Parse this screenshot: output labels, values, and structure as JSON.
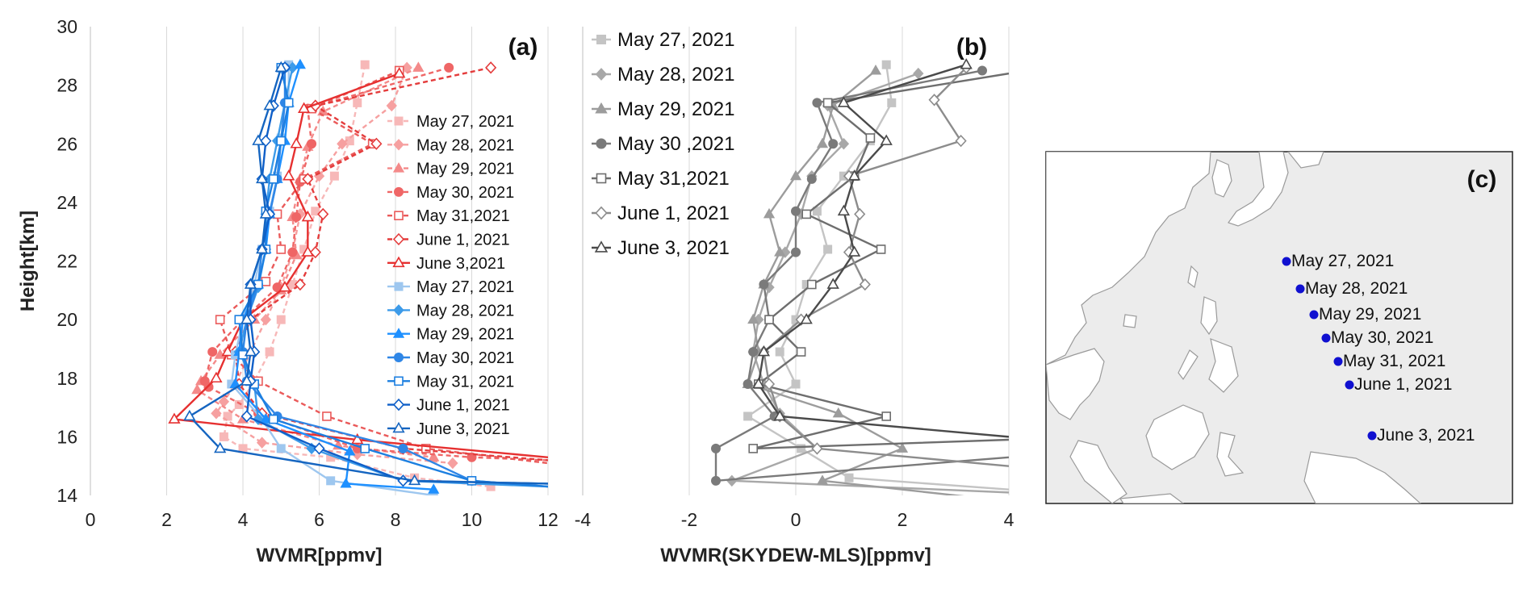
{
  "chart_data": [
    {
      "panel": "(a)",
      "type": "line",
      "xlabel": "WVMR[ppmv]",
      "ylabel": "Height[km]",
      "xlim": [
        0,
        12
      ],
      "ylim": [
        14,
        30
      ],
      "xticks": [
        "0",
        "2",
        "4",
        "6",
        "8",
        "10",
        "12"
      ],
      "yticks": [
        "14",
        "16",
        "18",
        "20",
        "22",
        "24",
        "26",
        "28",
        "30"
      ],
      "grid": "vertical",
      "legend": "inside-right",
      "series": [
        {
          "name": "May 27, 2021",
          "color": "#f7b8b8",
          "dash": true,
          "marker": "square",
          "x": [
            7.2,
            7.0,
            6.8,
            6.4,
            5.9,
            5.6,
            5.3,
            5.0,
            4.7,
            4.3,
            3.9,
            3.6,
            3.5,
            4.0,
            6.3,
            8.5,
            10.5
          ],
          "y": [
            28.7,
            27.4,
            26.1,
            24.9,
            23.7,
            22.4,
            21.2,
            20.0,
            18.9,
            17.9,
            17.1,
            16.7,
            16.0,
            15.6,
            15.3,
            14.6,
            14.3
          ]
        },
        {
          "name": "May 28, 2021",
          "color": "#f6a0a0",
          "dash": true,
          "marker": "diamond",
          "x": [
            8.3,
            7.9,
            6.6,
            6.0,
            5.5,
            5.3,
            5.0,
            4.6,
            4.2,
            3.8,
            3.5,
            3.3,
            4.5,
            7.0,
            9.5
          ],
          "y": [
            28.6,
            27.3,
            26.0,
            24.9,
            23.6,
            22.3,
            21.1,
            20.0,
            18.9,
            17.8,
            17.2,
            16.8,
            15.8,
            15.4,
            15.1
          ]
        },
        {
          "name": "May 29, 2021",
          "color": "#f48a8a",
          "dash": true,
          "marker": "triangle",
          "x": [
            8.6,
            6.1,
            5.7,
            5.5,
            5.3,
            5.4,
            5.0,
            4.3,
            3.4,
            2.9,
            2.8,
            4.0,
            6.5,
            9.0
          ],
          "y": [
            28.6,
            27.1,
            25.9,
            24.8,
            23.5,
            22.2,
            21.0,
            20.0,
            18.8,
            17.9,
            17.6,
            16.6,
            15.7,
            15.3
          ]
        },
        {
          "name": "May 30, 2021",
          "color": "#ef6666",
          "dash": true,
          "marker": "circle",
          "x": [
            9.4,
            5.7,
            5.8,
            5.5,
            5.4,
            5.3,
            4.9,
            4.0,
            3.2,
            3.0,
            3.1,
            4.4,
            7.0,
            10.0,
            12.0
          ],
          "y": [
            28.6,
            27.2,
            26.0,
            24.7,
            23.5,
            22.3,
            21.1,
            20.0,
            18.9,
            17.9,
            17.7,
            16.8,
            15.6,
            15.3,
            15.2
          ]
        },
        {
          "name": "May 31,2021",
          "color": "#ea5a5a",
          "dash": true,
          "marker": "square-open",
          "x": [
            8.1,
            5.8,
            7.4,
            5.6,
            4.9,
            5.0,
            4.6,
            3.4,
            3.7,
            4.4,
            6.2,
            8.8,
            12.0
          ],
          "y": [
            28.5,
            27.2,
            26.0,
            24.8,
            23.6,
            22.4,
            21.3,
            20.0,
            18.8,
            17.9,
            16.7,
            15.6,
            15.1
          ]
        },
        {
          "name": "June 1, 2021",
          "color": "#e43c3c",
          "dash": true,
          "marker": "diamond-open",
          "x": [
            10.5,
            5.9,
            7.5,
            5.7,
            6.1,
            5.9,
            5.5,
            4.2,
            3.8,
            3.9,
            4.5,
            8.2,
            12.0
          ],
          "y": [
            28.6,
            27.3,
            26.0,
            24.8,
            23.6,
            22.3,
            21.2,
            20.0,
            18.9,
            17.8,
            16.8,
            15.6,
            15.2
          ]
        },
        {
          "name": "June 3,2021",
          "color": "#e63030",
          "dash": false,
          "marker": "triangle-open",
          "x": [
            8.1,
            5.6,
            5.4,
            5.2,
            5.7,
            5.7,
            5.1,
            4.0,
            3.6,
            3.3,
            2.2,
            7.0,
            12.0
          ],
          "y": [
            28.4,
            27.2,
            26.0,
            24.9,
            23.5,
            22.3,
            21.1,
            20.0,
            18.9,
            18.0,
            16.6,
            15.9,
            15.3
          ]
        },
        {
          "name": "May 27, 2021",
          "color": "#9ec7ef",
          "dash": false,
          "marker": "square",
          "x": [
            5.2,
            5.2,
            5.0,
            4.9,
            4.7,
            4.5,
            4.3,
            4.0,
            3.8,
            3.7,
            4.5,
            5.0,
            6.3,
            9.0
          ],
          "y": [
            28.7,
            27.4,
            26.2,
            24.9,
            23.7,
            22.4,
            21.2,
            20.0,
            18.8,
            17.8,
            16.6,
            15.6,
            14.5,
            14.0
          ]
        },
        {
          "name": "May 28, 2021",
          "color": "#3d9be9",
          "dash": false,
          "marker": "diamond",
          "x": [
            5.3,
            5.1,
            4.9,
            4.7,
            4.6,
            4.6,
            4.4,
            4.1,
            3.9,
            4.3,
            4.4,
            5.8,
            8.2,
            12.0
          ],
          "y": [
            28.6,
            27.4,
            26.1,
            24.8,
            23.6,
            22.4,
            21.1,
            20.0,
            18.9,
            17.8,
            16.6,
            15.6,
            14.5,
            14.3
          ]
        },
        {
          "name": "May 29, 2021",
          "color": "#1e90ff",
          "dash": false,
          "marker": "triangle",
          "x": [
            5.5,
            5.2,
            5.1,
            4.9,
            4.7,
            4.6,
            4.4,
            4.0,
            3.9,
            3.8,
            4.6,
            6.8,
            6.7,
            9.0
          ],
          "y": [
            28.7,
            27.4,
            26.1,
            24.8,
            23.6,
            22.4,
            21.2,
            20.0,
            18.9,
            17.8,
            16.6,
            15.5,
            14.4,
            14.2
          ]
        },
        {
          "name": "May 30, 2021",
          "color": "#2f86e6",
          "dash": false,
          "marker": "circle",
          "x": [
            5.1,
            5.1,
            5.0,
            4.9,
            4.7,
            4.5,
            4.4,
            4.1,
            4.0,
            4.1,
            4.9,
            8.2,
            10.0,
            12.0
          ],
          "y": [
            28.6,
            27.4,
            26.1,
            24.8,
            23.6,
            22.4,
            21.2,
            20.0,
            18.9,
            17.9,
            16.7,
            15.6,
            14.5,
            14.3
          ]
        },
        {
          "name": "May 31, 2021",
          "color": "#1c7fe0",
          "dash": false,
          "marker": "square-open",
          "x": [
            5.0,
            5.2,
            5.0,
            4.8,
            4.6,
            4.6,
            4.4,
            3.9,
            4.0,
            4.3,
            4.8,
            7.2,
            10.0,
            12.0
          ],
          "y": [
            28.6,
            27.4,
            26.1,
            24.8,
            23.7,
            22.4,
            21.2,
            20.0,
            18.8,
            17.8,
            16.6,
            15.6,
            14.5,
            14.3
          ]
        },
        {
          "name": "June 1, 2021",
          "color": "#0f5fc8",
          "dash": false,
          "marker": "diamond-open",
          "x": [
            5.1,
            4.8,
            4.6,
            4.5,
            4.7,
            4.5,
            4.2,
            4.2,
            4.3,
            4.2,
            4.1,
            6.0,
            8.2,
            12.0
          ],
          "y": [
            28.6,
            27.3,
            26.1,
            24.8,
            23.6,
            22.4,
            21.2,
            20.0,
            18.9,
            17.9,
            16.7,
            15.6,
            14.5,
            14.4
          ]
        },
        {
          "name": "June 3, 2021",
          "color": "#1565c0",
          "dash": false,
          "marker": "triangle-open",
          "x": [
            5.0,
            4.7,
            4.4,
            4.5,
            4.6,
            4.5,
            4.2,
            4.1,
            4.2,
            4.1,
            2.6,
            3.4,
            8.5,
            12.0
          ],
          "y": [
            28.6,
            27.3,
            26.1,
            24.8,
            23.6,
            22.4,
            21.2,
            20.0,
            18.9,
            17.9,
            16.7,
            15.6,
            14.5,
            14.4
          ]
        }
      ]
    },
    {
      "panel": "(b)",
      "type": "line",
      "xlabel": "WVMR(SKYDEW-MLS)[ppmv]",
      "xlim": [
        -4,
        4
      ],
      "ylim": [
        14,
        30
      ],
      "xticks": [
        "-4",
        "-2",
        "0",
        "2",
        "4"
      ],
      "grid": "vertical",
      "legend": "top-left",
      "series": [
        {
          "name": "May 27, 2021",
          "color": "#c4c4c4",
          "marker": "square",
          "x": [
            1.7,
            1.8,
            1.4,
            0.9,
            0.4,
            0.6,
            0.2,
            0.0,
            -0.3,
            0.0,
            -0.9,
            0.1,
            1.0,
            4.0
          ],
          "y": [
            28.7,
            27.4,
            26.1,
            24.9,
            23.7,
            22.4,
            21.2,
            20.0,
            18.9,
            17.8,
            16.7,
            15.6,
            14.6,
            14.2
          ]
        },
        {
          "name": "May 28, 2021",
          "color": "#a8a8a8",
          "marker": "diamond",
          "x": [
            2.3,
            0.6,
            0.9,
            0.3,
            0.1,
            -0.2,
            -0.5,
            -0.7,
            -0.8,
            -0.6,
            -0.3,
            0.4,
            -1.2,
            4.0
          ],
          "y": [
            28.4,
            27.3,
            26.0,
            24.9,
            23.6,
            22.3,
            21.1,
            20.0,
            18.9,
            17.8,
            16.8,
            15.6,
            14.5,
            14.1
          ]
        },
        {
          "name": "May 29, 2021",
          "color": "#9c9c9c",
          "marker": "triangle",
          "x": [
            1.5,
            0.7,
            0.5,
            0.0,
            -0.5,
            -0.3,
            -0.6,
            -0.8,
            -0.7,
            -0.9,
            0.8,
            2.0,
            0.5,
            4.0
          ],
          "y": [
            28.5,
            27.3,
            26.0,
            24.9,
            23.6,
            22.3,
            21.2,
            20.0,
            18.9,
            17.8,
            16.8,
            15.6,
            14.5,
            13.8
          ]
        },
        {
          "name": "May 30 ,2021",
          "color": "#7a7a7a",
          "marker": "circle",
          "x": [
            3.5,
            0.4,
            0.7,
            0.3,
            0.0,
            0.0,
            -0.6,
            -0.5,
            -0.8,
            -0.9,
            -0.4,
            -1.5,
            -1.5,
            4.0
          ],
          "y": [
            28.5,
            27.4,
            26.0,
            24.8,
            23.7,
            22.3,
            21.2,
            20.0,
            18.9,
            17.8,
            16.7,
            15.6,
            14.5,
            15.3
          ]
        },
        {
          "name": "May 31,2021",
          "color": "#6e6e6e",
          "marker": "square-open",
          "x": [
            4.0,
            0.6,
            1.4,
            1.1,
            0.2,
            1.6,
            0.3,
            -0.5,
            0.1,
            -0.7,
            1.7,
            -0.8,
            4.0
          ],
          "y": [
            28.4,
            27.4,
            26.2,
            24.9,
            23.6,
            22.4,
            21.2,
            20.0,
            18.9,
            17.8,
            16.7,
            15.6,
            15.9
          ]
        },
        {
          "name": "June 1, 2021",
          "color": "#8c8c8c",
          "marker": "diamond-open",
          "x": [
            3.2,
            2.6,
            3.1,
            1.0,
            1.2,
            1.0,
            1.3,
            0.1,
            -0.6,
            -0.5,
            -0.3,
            0.4,
            4.0
          ],
          "y": [
            28.6,
            27.5,
            26.1,
            24.9,
            23.6,
            22.3,
            21.2,
            20.0,
            18.9,
            17.8,
            16.7,
            15.6,
            15.0
          ]
        },
        {
          "name": "June 3, 2021",
          "color": "#4a4a4a",
          "marker": "triangle-open",
          "x": [
            3.2,
            0.9,
            1.7,
            1.1,
            0.9,
            1.1,
            0.7,
            0.2,
            -0.6,
            -0.7,
            -0.3,
            4.0
          ],
          "y": [
            28.7,
            27.4,
            26.1,
            24.9,
            23.7,
            22.3,
            21.2,
            20.0,
            18.9,
            17.8,
            16.7,
            16.0
          ]
        }
      ]
    },
    {
      "panel": "(c)",
      "type": "map",
      "points": [
        {
          "label": "May 27, 2021"
        },
        {
          "label": "May 28, 2021"
        },
        {
          "label": "May 29, 2021"
        },
        {
          "label": "May 30, 2021"
        },
        {
          "label": "May 31, 2021"
        },
        {
          "label": "June 1, 2021"
        },
        {
          "label": "June 3, 2021"
        }
      ],
      "point_color": "#1010d0",
      "land_color": "#ffffff",
      "sea_color": "#ececec"
    }
  ]
}
